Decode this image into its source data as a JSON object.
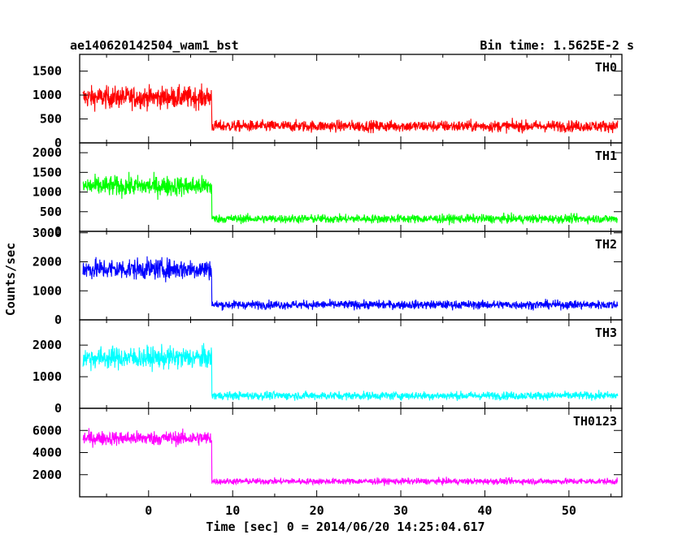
{
  "chart_data": {
    "type": "line",
    "title": "ae140620142504_wam1_bst",
    "subtitle": "Bin time: 1.5625E-2 s",
    "xlabel": "Time [sec] 0 = 2014/06/20 14:25:04.617",
    "ylabel": "Counts/sec",
    "xlim": [
      -8.2,
      56.3
    ],
    "x_ticks": [
      "0",
      "10",
      "20",
      "30",
      "40",
      "50"
    ],
    "x_tick_values": [
      0,
      10,
      20,
      30,
      40,
      50
    ],
    "grid": false,
    "legend": "none",
    "series": [
      {
        "name": "TH0",
        "color": "#ff0000",
        "ylim": [
          0,
          1850
        ],
        "y_ticks": [
          "0",
          "500",
          "1000",
          "1500"
        ],
        "y_tick_values": [
          0,
          500,
          1000,
          1500
        ],
        "burst_mean": 950,
        "burst_noise": 230,
        "tail_mean": 350,
        "tail_noise": 120,
        "burst_end": 7.5
      },
      {
        "name": "TH1",
        "color": "#00ff00",
        "ylim": [
          0,
          2250
        ],
        "y_ticks": [
          "0",
          "500",
          "1000",
          "1500",
          "2000"
        ],
        "y_tick_values": [
          0,
          500,
          1000,
          1500,
          2000
        ],
        "burst_mean": 1150,
        "burst_noise": 260,
        "tail_mean": 320,
        "tail_noise": 110,
        "burst_end": 7.5
      },
      {
        "name": "TH2",
        "color": "#0000ff",
        "ylim": [
          0,
          3050
        ],
        "y_ticks": [
          "0",
          "1000",
          "2000",
          "3000"
        ],
        "y_tick_values": [
          0,
          1000,
          2000,
          3000
        ],
        "burst_mean": 1750,
        "burst_noise": 360,
        "tail_mean": 520,
        "tail_noise": 150,
        "burst_end": 7.5
      },
      {
        "name": "TH3",
        "color": "#00ffff",
        "ylim": [
          0,
          2800
        ],
        "y_ticks": [
          "0",
          "1000",
          "2000"
        ],
        "y_tick_values": [
          0,
          1000,
          2000
        ],
        "burst_mean": 1600,
        "burst_noise": 350,
        "tail_mean": 400,
        "tail_noise": 130,
        "burst_end": 7.5
      },
      {
        "name": "TH0123",
        "color": "#ff00ff",
        "ylim": [
          0,
          8000
        ],
        "y_ticks": [
          "2000",
          "4000",
          "6000"
        ],
        "y_tick_values": [
          2000,
          4000,
          6000
        ],
        "burst_mean": 5300,
        "burst_noise": 650,
        "tail_mean": 1400,
        "tail_noise": 280,
        "burst_end": 7.5
      }
    ]
  }
}
